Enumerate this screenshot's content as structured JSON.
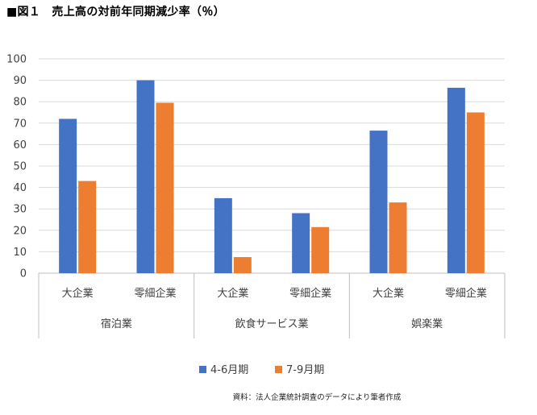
{
  "figure": {
    "title": "■図１　売上高の対前年同期減少率（％）",
    "source": "資料：法人企業統計調査のデータにより筆者作成"
  },
  "chart_data": {
    "type": "bar",
    "title": "",
    "xlabel": "",
    "ylabel": "",
    "ylim": [
      0,
      100
    ],
    "yticks": [
      "0",
      "10",
      "20",
      "30",
      "40",
      "50",
      "60",
      "70",
      "80",
      "90",
      "100"
    ],
    "grid": true,
    "legend_position": "bottom",
    "groups": [
      {
        "label": "宿泊業",
        "categories": [
          "大企業",
          "零細企業"
        ]
      },
      {
        "label": "飲食サービス業",
        "categories": [
          "大企業",
          "零細企業"
        ]
      },
      {
        "label": "娯楽業",
        "categories": [
          "大企業",
          "零細企業"
        ]
      }
    ],
    "categories": [
      "大企業",
      "零細企業",
      "大企業",
      "零細企業",
      "大企業",
      "零細企業"
    ],
    "series": [
      {
        "name": "4-6月期",
        "color": "#4472C4",
        "values": [
          72,
          90,
          35,
          28,
          66.5,
          86.5
        ]
      },
      {
        "name": "7-9月期",
        "color": "#ED7D31",
        "values": [
          43,
          79.5,
          7.5,
          21.5,
          33,
          75
        ]
      }
    ]
  }
}
